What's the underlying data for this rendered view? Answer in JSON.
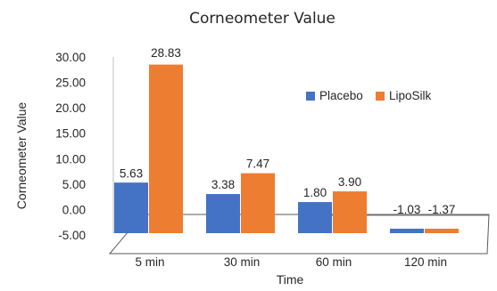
{
  "chart_data": {
    "type": "bar",
    "title": "Corneometer Value",
    "xlabel": "Time",
    "ylabel": "Corneometer Value",
    "categories": [
      "5 min",
      "30 min",
      "60 min",
      "120 min"
    ],
    "series": [
      {
        "name": "Placebo",
        "values": [
          5.63,
          3.38,
          1.8,
          -1.03
        ],
        "labels": [
          "5.63",
          "3.38",
          "1.80",
          "-1.03"
        ],
        "color": "#4472C4"
      },
      {
        "name": "LipoSilk",
        "values": [
          28.83,
          7.47,
          3.9,
          -1.37
        ],
        "labels": [
          "28.83",
          "7.47",
          "3.90",
          "-1.37"
        ],
        "color": "#ED7D31"
      }
    ],
    "ylim": [
      -5,
      30
    ],
    "yticks": [
      "-5.00",
      "0.00",
      "5.00",
      "10.00",
      "15.00",
      "20.00",
      "25.00",
      "30.00"
    ],
    "grid": false,
    "legend_position": "right",
    "style": "3d-perspective-floor"
  }
}
